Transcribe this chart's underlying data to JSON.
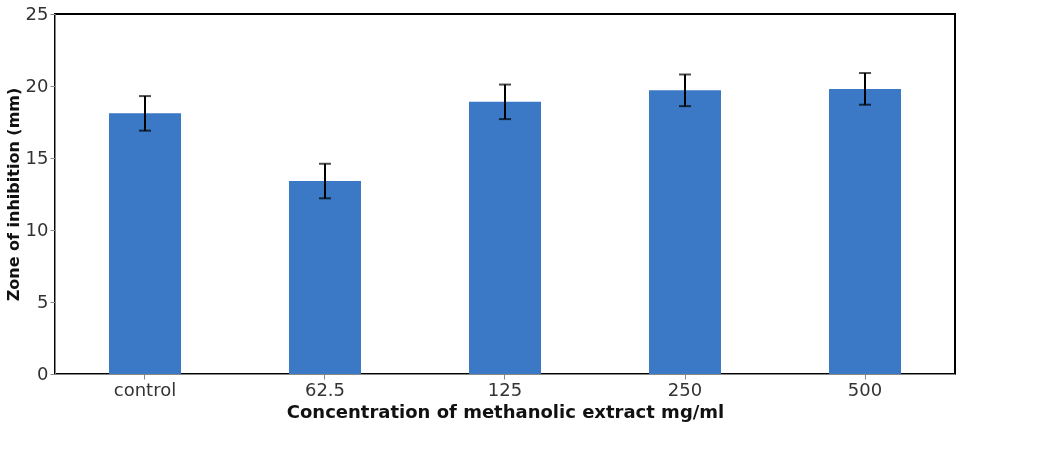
{
  "chart_data": {
    "type": "bar",
    "xlabel": "Concentration of methanolic extract mg/ml",
    "ylabel": "Zone of inhibition (mm)",
    "categories": [
      "control",
      "62.5",
      "125",
      "250",
      "500"
    ],
    "values": [
      18.1,
      13.4,
      18.9,
      19.7,
      19.8
    ],
    "errors": [
      1.2,
      1.2,
      1.2,
      1.1,
      1.1
    ],
    "color": "#3b78c6",
    "ylim": [
      0,
      25
    ],
    "yticks": [
      0,
      5,
      10,
      15,
      20,
      25
    ],
    "grid": false
  }
}
